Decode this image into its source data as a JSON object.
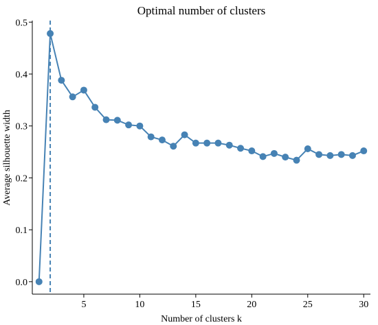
{
  "chart_data": {
    "type": "line",
    "title": "Optimal number of clusters",
    "xlabel": "Number of clusters k",
    "ylabel": "Average silhouette width",
    "x": [
      1,
      2,
      3,
      4,
      5,
      6,
      7,
      8,
      9,
      10,
      11,
      12,
      13,
      14,
      15,
      16,
      17,
      18,
      19,
      20,
      21,
      22,
      23,
      24,
      25,
      26,
      27,
      28,
      29,
      30
    ],
    "series": [
      {
        "values": [
          0.0,
          0.478,
          0.388,
          0.356,
          0.369,
          0.336,
          0.312,
          0.311,
          0.302,
          0.3,
          0.279,
          0.273,
          0.261,
          0.283,
          0.267,
          0.267,
          0.267,
          0.263,
          0.257,
          0.252,
          0.241,
          0.247,
          0.24,
          0.234,
          0.256,
          0.245,
          0.243,
          0.245,
          0.243,
          0.252
        ],
        "color": "#4682b4"
      }
    ],
    "optimal_k": 2,
    "xlim": [
      0.4,
      30.6
    ],
    "ylim": [
      -0.024,
      0.503
    ],
    "xticks": [
      5,
      10,
      15,
      20,
      25,
      30
    ],
    "xtick_labels": [
      "5",
      "10",
      "15",
      "20",
      "25",
      "30"
    ],
    "yticks": [
      0.0,
      0.1,
      0.2,
      0.3,
      0.4,
      0.5
    ],
    "ytick_labels": [
      "0.0",
      "0.1",
      "0.2",
      "0.3",
      "0.4",
      "0.5"
    ],
    "grid": false,
    "legend": "none",
    "colors": {
      "series": "#4682b4",
      "vline": "#4682b4",
      "axis": "#000000"
    }
  }
}
